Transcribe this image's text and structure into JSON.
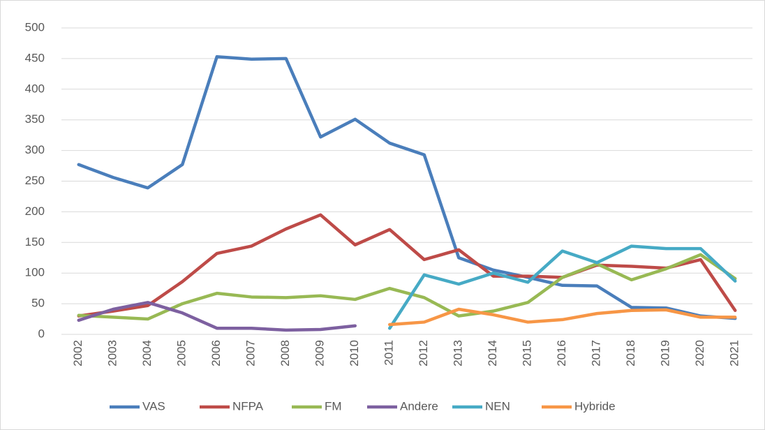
{
  "chart_data": {
    "type": "line",
    "categories": [
      "2002",
      "2003",
      "2004",
      "2005",
      "2006",
      "2007",
      "2008",
      "2009",
      "2010",
      "2011",
      "2012",
      "2013",
      "2014",
      "2015",
      "2016",
      "2017",
      "2018",
      "2019",
      "2020",
      "2021"
    ],
    "series": [
      {
        "name": "VAS",
        "color": "#4a7ebb",
        "values": [
          277,
          256,
          239,
          277,
          453,
          449,
          450,
          322,
          351,
          312,
          293,
          125,
          105,
          93,
          80,
          79,
          44,
          43,
          30,
          26
        ]
      },
      {
        "name": "NFPA",
        "color": "#be4b48",
        "values": [
          30,
          38,
          47,
          86,
          132,
          144,
          172,
          195,
          146,
          171,
          122,
          138,
          95,
          95,
          93,
          113,
          111,
          108,
          122,
          39
        ]
      },
      {
        "name": "FM",
        "color": "#98b954",
        "values": [
          31,
          28,
          25,
          50,
          67,
          61,
          60,
          63,
          57,
          75,
          60,
          30,
          38,
          52,
          93,
          115,
          89,
          107,
          130,
          91
        ]
      },
      {
        "name": "Andere",
        "color": "#7d60a0",
        "values": [
          23,
          41,
          52,
          35,
          10,
          10,
          7,
          8,
          14,
          null,
          null,
          null,
          null,
          null,
          null,
          null,
          null,
          null,
          null,
          null
        ]
      },
      {
        "name": "NEN",
        "color": "#46aac5",
        "values": [
          null,
          null,
          null,
          null,
          null,
          null,
          null,
          null,
          null,
          10,
          97,
          82,
          100,
          85,
          136,
          117,
          144,
          140,
          140,
          87
        ]
      },
      {
        "name": "Hybride",
        "color": "#f79646",
        "values": [
          null,
          null,
          null,
          null,
          null,
          null,
          null,
          null,
          null,
          16,
          20,
          41,
          32,
          20,
          24,
          34,
          39,
          40,
          28,
          28
        ]
      }
    ],
    "ylim": [
      0,
      500
    ],
    "yticks": [
      0,
      50,
      100,
      150,
      200,
      250,
      300,
      350,
      400,
      450,
      500
    ],
    "grid": true,
    "legend": "bottom"
  }
}
